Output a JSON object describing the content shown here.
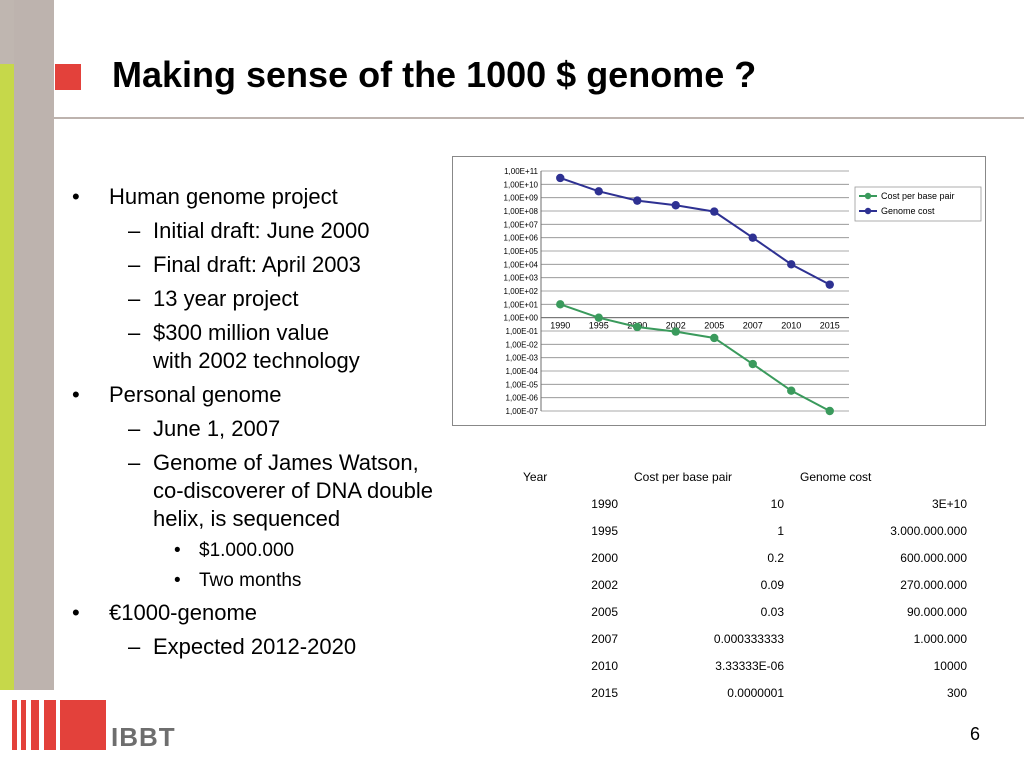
{
  "slide": {
    "title": "Making sense of the 1000 $ genome ?",
    "page_number": "6",
    "logo_text": "IBBT",
    "accent_color": "#e3413b"
  },
  "bullets": {
    "b1": {
      "marker": "•",
      "text": "Human genome project"
    },
    "b1_1": {
      "marker": "–",
      "text": "Initial draft: June 2000"
    },
    "b1_2": {
      "marker": "–",
      "text": "Final draft: April 2003"
    },
    "b1_3": {
      "marker": "–",
      "text": "13 year project"
    },
    "b1_4": {
      "marker": "–",
      "line1": "$300 million value",
      "line2": "with 2002 technology"
    },
    "b2": {
      "marker": "•",
      "text": "Personal genome"
    },
    "b2_1": {
      "marker": "–",
      "text": "June 1, 2007"
    },
    "b2_2": {
      "marker": "–",
      "line1": "Genome of James Watson,",
      "line2": "co-discoverer of DNA double",
      "line3": "helix, is sequenced"
    },
    "b2_2_1": {
      "marker": "•",
      "text": "$1.000.000"
    },
    "b2_2_2": {
      "marker": "•",
      "text": "Two months"
    },
    "b3": {
      "marker": "•",
      "text": "€1000-genome"
    },
    "b3_1": {
      "marker": "–",
      "text": "Expected 2012-2020"
    }
  },
  "chart_data": {
    "type": "line",
    "categories": [
      "1990",
      "1995",
      "2000",
      "2002",
      "2005",
      "2007",
      "2010",
      "2015"
    ],
    "yscale": "log",
    "ylim": [
      "1,00E-07",
      "1,00E+11"
    ],
    "ytick_labels": [
      "1,00E+11",
      "1,00E+10",
      "1,00E+09",
      "1,00E+08",
      "1,00E+07",
      "1,00E+06",
      "1,00E+05",
      "1,00E+04",
      "1,00E+03",
      "1,00E+02",
      "1,00E+01",
      "1,00E+00",
      "1,00E-01",
      "1,00E-02",
      "1,00E-03",
      "1,00E-04",
      "1,00E-05",
      "1,00E-06",
      "1,00E-07"
    ],
    "ytick_exponents": [
      11,
      10,
      9,
      8,
      7,
      6,
      5,
      4,
      3,
      2,
      1,
      0,
      -1,
      -2,
      -3,
      -4,
      -5,
      -6,
      -7
    ],
    "grid": true,
    "legend": "right",
    "series": [
      {
        "name": "Cost per base pair",
        "color": "#3a9a5c",
        "values": [
          10,
          1,
          0.2,
          0.09,
          0.03,
          0.000333333,
          3.33333e-06,
          1e-07
        ]
      },
      {
        "name": "Genome cost",
        "color": "#2e3192",
        "values": [
          30000000000,
          3000000000,
          600000000,
          270000000,
          90000000,
          1000000,
          10000,
          300
        ]
      }
    ]
  },
  "table": {
    "headers": [
      "Year",
      "Cost per base pair",
      "Genome cost"
    ],
    "rows": [
      [
        "1990",
        "10",
        "3E+10"
      ],
      [
        "1995",
        "1",
        "3.000.000.000"
      ],
      [
        "2000",
        "0.2",
        "600.000.000"
      ],
      [
        "2002",
        "0.09",
        "270.000.000"
      ],
      [
        "2005",
        "0.03",
        "90.000.000"
      ],
      [
        "2007",
        "0.000333333",
        "1.000.000"
      ],
      [
        "2010",
        "3.33333E-06",
        "10000"
      ],
      [
        "2015",
        "0.0000001",
        "300"
      ]
    ]
  }
}
